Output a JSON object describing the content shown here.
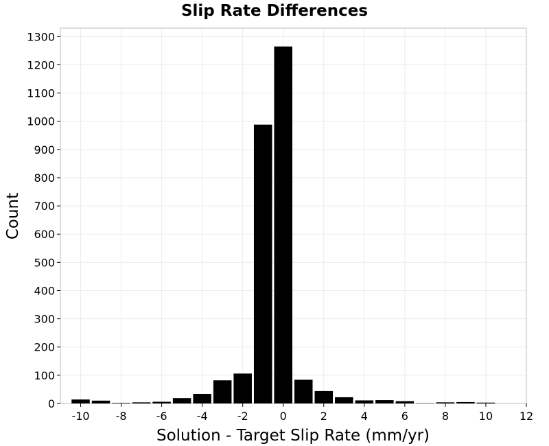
{
  "chart_data": {
    "type": "bar",
    "title": "Slip Rate Differences",
    "xlabel": "Solution - Target Slip Rate (mm/yr)",
    "ylabel": "Count",
    "xlim": [
      -11,
      12
    ],
    "ylim": [
      0,
      1330
    ],
    "xticks": [
      -10,
      -8,
      -6,
      -4,
      -2,
      0,
      2,
      4,
      6,
      8,
      10,
      12
    ],
    "yticks": [
      0,
      100,
      200,
      300,
      400,
      500,
      600,
      700,
      800,
      900,
      1000,
      1100,
      1200,
      1300
    ],
    "bin_width": 1,
    "grid": true,
    "bar_color": "#000000",
    "grid_color": "#ebebeb",
    "bins": [
      {
        "x": -10,
        "count": 14
      },
      {
        "x": -9,
        "count": 10
      },
      {
        "x": -8,
        "count": 2
      },
      {
        "x": -7,
        "count": 4
      },
      {
        "x": -6,
        "count": 6
      },
      {
        "x": -5,
        "count": 19
      },
      {
        "x": -4,
        "count": 34
      },
      {
        "x": -3,
        "count": 82
      },
      {
        "x": -2,
        "count": 106
      },
      {
        "x": -1,
        "count": 988
      },
      {
        "x": 0,
        "count": 1265
      },
      {
        "x": 1,
        "count": 84
      },
      {
        "x": 2,
        "count": 44
      },
      {
        "x": 3,
        "count": 22
      },
      {
        "x": 4,
        "count": 11
      },
      {
        "x": 5,
        "count": 12
      },
      {
        "x": 6,
        "count": 8
      },
      {
        "x": 7,
        "count": 1
      },
      {
        "x": 8,
        "count": 4
      },
      {
        "x": 9,
        "count": 5
      },
      {
        "x": 10,
        "count": 3
      }
    ]
  }
}
